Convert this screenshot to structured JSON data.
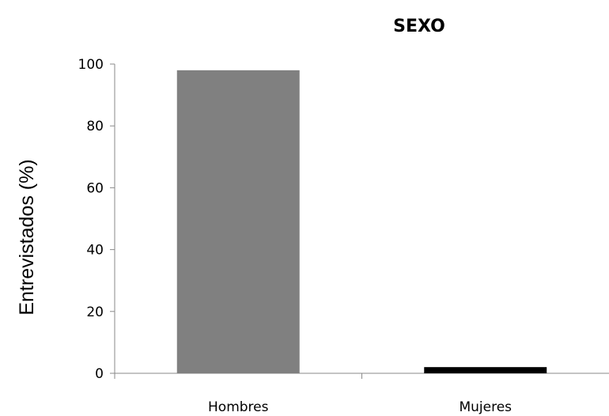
{
  "chart_data": {
    "type": "bar",
    "title": "SEXO",
    "ylabel": "Entrevistados (%)",
    "xlabel": "",
    "categories": [
      "Hombres",
      "Mujeres"
    ],
    "values": [
      98,
      2
    ],
    "colors": [
      "#808080",
      "#000000"
    ],
    "ylim": [
      0,
      100
    ],
    "yticks": [
      0,
      20,
      40,
      60,
      80,
      100
    ],
    "grid": false,
    "legend": "none"
  }
}
